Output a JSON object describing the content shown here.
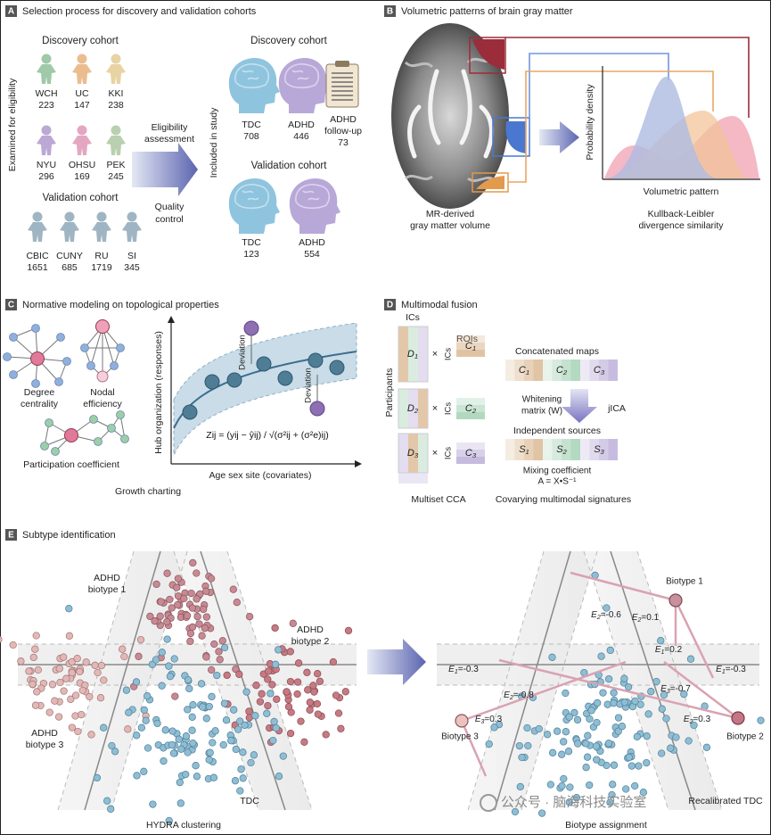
{
  "panel_a": {
    "letter": "A",
    "title": "Selection process for discovery and validation cohorts",
    "side_label": "Examined for eligibility",
    "discovery_heading": "Discovery cohort",
    "discovery_sites": [
      {
        "name": "WCH",
        "n": 223
      },
      {
        "name": "UC",
        "n": 147
      },
      {
        "name": "KKI",
        "n": 238
      },
      {
        "name": "NYU",
        "n": 296
      },
      {
        "name": "OHSU",
        "n": 169
      },
      {
        "name": "PEK",
        "n": 245
      }
    ],
    "validation_heading": "Validation cohort",
    "validation_sites": [
      {
        "name": "CBIC",
        "n": 1651
      },
      {
        "name": "CUNY",
        "n": 685
      },
      {
        "name": "RU",
        "n": 1719
      },
      {
        "name": "SI",
        "n": 345
      }
    ],
    "step1": [
      "Eligibility",
      "assessment"
    ],
    "step2": [
      "Quality",
      "control"
    ],
    "included_label": "Included in study",
    "included_discovery": {
      "heading": "Discovery cohort",
      "groups": [
        {
          "name": "TDC",
          "n": 708
        },
        {
          "name": "ADHD",
          "n": 446
        },
        {
          "name_lines": [
            "ADHD",
            "follow-up"
          ],
          "n": 73
        }
      ]
    },
    "included_validation": {
      "heading": "Validation cohort",
      "groups": [
        {
          "name": "TDC",
          "n": 123
        },
        {
          "name": "ADHD",
          "n": 554
        }
      ]
    }
  },
  "panel_b": {
    "letter": "B",
    "title": "Volumetric patterns of brain gray matter",
    "y_label": "Probability density",
    "x_label": "Volumetric pattern",
    "left_caption": [
      "MR-derived",
      "gray matter volume"
    ],
    "right_caption": [
      "Kullback-Leibler",
      "divergence similarity"
    ]
  },
  "panel_c": {
    "letter": "C",
    "title": "Normative modeling on topological properties",
    "networks": [
      {
        "lines": [
          "Degree",
          "centrality"
        ]
      },
      {
        "lines": [
          "Nodal",
          "efficiency"
        ]
      },
      {
        "lines": [
          "Participation coefficient"
        ]
      }
    ],
    "y_label": "Hub organization (responses)",
    "x_label": "Age sex site (covariates)",
    "deviation_labels": [
      "Deviation",
      "Deviation"
    ],
    "formula": "Zij = (yij − ŷij) / √(σ²ij + (σ²e)ij)",
    "caption": "Growth charting"
  },
  "panel_d": {
    "letter": "D",
    "title": "Multimodal fusion",
    "ics_label": "ICs",
    "rois_label": "ROIs",
    "participants_label": "Participants",
    "times": "×",
    "d_blocks": [
      {
        "base": "D",
        "sub": "1"
      },
      {
        "base": "D",
        "sub": "2"
      },
      {
        "base": "D",
        "sub": "3"
      }
    ],
    "c_blocks": [
      {
        "base": "C",
        "sub": "1"
      },
      {
        "base": "C",
        "sub": "2"
      },
      {
        "base": "C",
        "sub": "3"
      }
    ],
    "ic_tags": [
      "ICs",
      "ICs",
      "ICs"
    ],
    "concatenated_label": "Concatenated maps",
    "whitening": [
      "Whitening",
      "matrix (W)"
    ],
    "jica": "jICA",
    "sources_label": "Independent sources",
    "s_blocks": [
      {
        "base": "S",
        "sub": "1"
      },
      {
        "base": "S",
        "sub": "2"
      },
      {
        "base": "S",
        "sub": "3"
      }
    ],
    "mixing": [
      "Mixing coefficient",
      "A = X•S⁻¹"
    ],
    "left_caption": "Multiset CCA",
    "right_caption": "Covarying multimodal signatures"
  },
  "panel_e": {
    "letter": "E",
    "title": "Subtype identification",
    "left_labels": [
      [
        "ADHD",
        "biotype 1"
      ],
      [
        "ADHD",
        "biotype 2"
      ],
      [
        "ADHD",
        "biotype 3"
      ]
    ],
    "tdc_label": "TDC",
    "left_caption": "HYDRA clustering",
    "biotypes": [
      "Biotype 1",
      "Biotype 2",
      "Biotype 3"
    ],
    "effects": [
      {
        "base": "E",
        "sub": "2",
        "rest": "=-0.6"
      },
      {
        "base": "E",
        "sub": "2",
        "rest": "=0.1"
      },
      {
        "base": "E",
        "sub": "1",
        "rest": "=0.2"
      },
      {
        "base": "E",
        "sub": "1",
        "rest": "=-0.3"
      },
      {
        "base": "E",
        "sub": "1",
        "rest": "=-0.3"
      },
      {
        "base": "E",
        "sub": "3",
        "rest": "=-0.7"
      },
      {
        "base": "E",
        "sub": "2",
        "rest": "=-0.8"
      },
      {
        "base": "E",
        "sub": "3",
        "rest": "=0.3"
      },
      {
        "base": "E",
        "sub": "2",
        "rest": "=0.3"
      }
    ],
    "recalibrated_label": "Recalibrated TDC",
    "right_caption": "Biotype assignment"
  },
  "watermark": "公众号 · 脑海科技实验室"
}
